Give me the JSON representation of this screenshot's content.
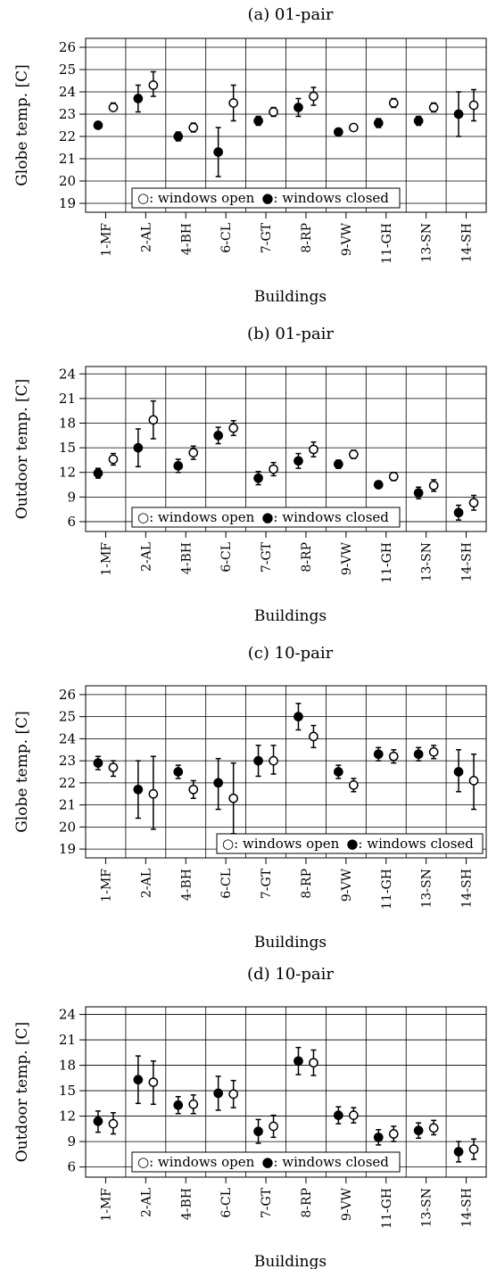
{
  "chart_data": [
    {
      "type": "scatter",
      "title": "(a) 01-pair",
      "ylabel": "Globe temp. [C]",
      "xlabel": "Buildings",
      "ylim": [
        18.6,
        26.4
      ],
      "yticks": [
        19,
        20,
        21,
        22,
        23,
        24,
        25,
        26
      ],
      "categories": [
        "1-MF",
        "2-AL",
        "4-BH",
        "6-CL",
        "7-GT",
        "8-RP",
        "9-VW",
        "11-GH",
        "13-SN",
        "14-SH"
      ],
      "legend": {
        "open": "○: windows open",
        "closed": "●: windows closed",
        "position": "bottom-left"
      },
      "series": [
        {
          "name": "windows closed",
          "marker": "filled",
          "values": [
            22.5,
            23.7,
            22.0,
            21.3,
            22.7,
            23.3,
            22.2,
            22.6,
            22.7,
            23.0
          ],
          "err_low": [
            22.4,
            23.1,
            21.8,
            20.2,
            22.5,
            22.9,
            22.1,
            22.4,
            22.5,
            22.0
          ],
          "err_high": [
            22.6,
            24.3,
            22.2,
            22.4,
            22.9,
            23.7,
            22.3,
            22.8,
            22.9,
            24.0
          ]
        },
        {
          "name": "windows open",
          "marker": "open",
          "values": [
            23.3,
            24.3,
            22.4,
            23.5,
            23.1,
            23.8,
            22.4,
            23.5,
            23.3,
            23.4
          ],
          "err_low": [
            23.2,
            23.8,
            22.2,
            22.7,
            22.9,
            23.4,
            22.3,
            23.3,
            23.1,
            22.7
          ],
          "err_high": [
            23.5,
            24.9,
            22.6,
            24.3,
            23.3,
            24.2,
            22.5,
            23.7,
            23.5,
            24.1
          ]
        }
      ]
    },
    {
      "type": "scatter",
      "title": "(b) 01-pair",
      "ylabel": "Outdoor temp. [C]",
      "xlabel": "Buildings",
      "ylim": [
        4.8,
        24.9
      ],
      "yticks": [
        6,
        9,
        12,
        15,
        18,
        21,
        24
      ],
      "categories": [
        "1-MF",
        "2-AL",
        "4-BH",
        "6-CL",
        "7-GT",
        "8-RP",
        "9-VW",
        "11-GH",
        "13-SN",
        "14-SH"
      ],
      "legend": {
        "open": "○: windows open",
        "closed": "●: windows closed",
        "position": "bottom-left"
      },
      "series": [
        {
          "name": "windows closed",
          "marker": "filled",
          "values": [
            11.9,
            15.0,
            12.8,
            16.5,
            11.3,
            13.4,
            13.0,
            10.5,
            9.5,
            7.1
          ],
          "err_low": [
            11.3,
            12.7,
            12.0,
            15.5,
            10.5,
            12.5,
            12.5,
            10.1,
            8.8,
            6.2
          ],
          "err_high": [
            12.5,
            17.3,
            13.6,
            17.5,
            12.1,
            14.3,
            13.5,
            10.9,
            10.2,
            8.0
          ]
        },
        {
          "name": "windows open",
          "marker": "open",
          "values": [
            13.6,
            18.4,
            14.4,
            17.4,
            12.4,
            14.8,
            14.2,
            11.5,
            10.4,
            8.3
          ],
          "err_low": [
            12.9,
            16.1,
            13.6,
            16.5,
            11.6,
            13.9,
            13.7,
            11.0,
            9.7,
            7.4
          ],
          "err_high": [
            14.3,
            20.7,
            15.2,
            18.3,
            13.2,
            15.7,
            14.7,
            12.0,
            11.1,
            9.2
          ]
        }
      ]
    },
    {
      "type": "scatter",
      "title": "(c) 10-pair",
      "ylabel": "Globe temp. [C]",
      "xlabel": "Buildings",
      "ylim": [
        18.6,
        26.4
      ],
      "yticks": [
        19,
        20,
        21,
        22,
        23,
        24,
        25,
        26
      ],
      "categories": [
        "1-MF",
        "2-AL",
        "4-BH",
        "6-CL",
        "7-GT",
        "8-RP",
        "9-VW",
        "11-GH",
        "13-SN",
        "14-SH"
      ],
      "legend": {
        "open": "○: windows open",
        "closed": "●: windows closed",
        "position": "bottom-right"
      },
      "series": [
        {
          "name": "windows closed",
          "marker": "filled",
          "values": [
            22.9,
            21.7,
            22.5,
            22.0,
            23.0,
            25.0,
            22.5,
            23.3,
            23.3,
            22.5
          ],
          "err_low": [
            22.6,
            20.4,
            22.2,
            20.8,
            22.3,
            24.4,
            22.2,
            23.0,
            23.0,
            21.6
          ],
          "err_high": [
            23.2,
            23.0,
            22.8,
            23.1,
            23.7,
            25.6,
            22.8,
            23.6,
            23.6,
            23.5
          ]
        },
        {
          "name": "windows open",
          "marker": "open",
          "values": [
            22.7,
            21.5,
            21.7,
            21.3,
            23.0,
            24.1,
            21.9,
            23.2,
            23.4,
            22.1
          ],
          "err_low": [
            22.3,
            19.9,
            21.3,
            19.7,
            22.4,
            23.6,
            21.6,
            22.9,
            23.1,
            20.8
          ],
          "err_high": [
            23.0,
            23.2,
            22.1,
            22.9,
            23.7,
            24.6,
            22.2,
            23.5,
            23.7,
            23.3
          ]
        }
      ]
    },
    {
      "type": "scatter",
      "title": "(d) 10-pair",
      "ylabel": "Outdoor temp. [C]",
      "xlabel": "Buildings",
      "ylim": [
        4.8,
        24.9
      ],
      "yticks": [
        6,
        9,
        12,
        15,
        18,
        21,
        24
      ],
      "categories": [
        "1-MF",
        "2-AL",
        "4-BH",
        "6-CL",
        "7-GT",
        "8-RP",
        "9-VW",
        "11-GH",
        "13-SN",
        "14-SH"
      ],
      "legend": {
        "open": "○: windows open",
        "closed": "●: windows closed",
        "position": "bottom-left"
      },
      "series": [
        {
          "name": "windows closed",
          "marker": "filled",
          "values": [
            11.4,
            16.3,
            13.3,
            14.7,
            10.2,
            18.5,
            12.1,
            9.5,
            10.3,
            7.8
          ],
          "err_low": [
            10.1,
            13.5,
            12.3,
            12.7,
            8.8,
            16.9,
            11.1,
            8.6,
            9.4,
            6.6
          ],
          "err_high": [
            12.6,
            19.1,
            14.3,
            16.7,
            11.6,
            20.1,
            13.1,
            10.4,
            11.2,
            9.0
          ]
        },
        {
          "name": "windows open",
          "marker": "open",
          "values": [
            11.1,
            16.0,
            13.4,
            14.6,
            10.8,
            18.3,
            12.1,
            9.9,
            10.6,
            8.1
          ],
          "err_low": [
            9.9,
            13.4,
            12.3,
            13.0,
            9.5,
            16.8,
            11.2,
            9.0,
            9.8,
            6.9
          ],
          "err_high": [
            12.4,
            18.5,
            14.5,
            16.2,
            12.1,
            19.8,
            13.0,
            10.8,
            11.5,
            9.3
          ]
        }
      ]
    }
  ]
}
